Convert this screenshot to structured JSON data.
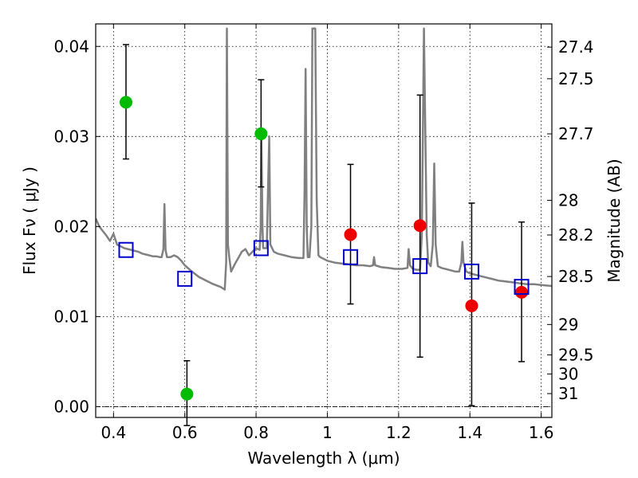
{
  "chart_data": {
    "type": "scatter",
    "xlabel": "Wavelength  λ (μm)",
    "ylabel": "Flux  Fν  ( μJy )",
    "ylabel_right": "Magnitude (AB)",
    "xlim": [
      0.35,
      1.63
    ],
    "ylim": [
      -0.0012,
      0.0425
    ],
    "grid": true,
    "x_ticks": [
      0.4,
      0.6,
      0.8,
      1.0,
      1.2,
      1.4,
      1.6
    ],
    "x_tick_labels": [
      "0.4",
      "0.6",
      "0.8",
      "1",
      "1.2",
      "1.4",
      "1.6"
    ],
    "y_ticks": [
      0.0,
      0.01,
      0.02,
      0.03,
      0.04
    ],
    "y_tick_labels": [
      "0.00",
      "0.01",
      "0.02",
      "0.03",
      "0.04"
    ],
    "right_ticks": [
      {
        "label": "27.4",
        "flux": 0.03992
      },
      {
        "label": "27.5",
        "flux": 0.03641
      },
      {
        "label": "27.7",
        "flux": 0.03029
      },
      {
        "label": "28",
        "flux": 0.02291
      },
      {
        "label": "28.2",
        "flux": 0.01906
      },
      {
        "label": "28.5",
        "flux": 0.01445
      },
      {
        "label": "29",
        "flux": 0.00912
      },
      {
        "label": "29.5",
        "flux": 0.00575
      },
      {
        "label": "30",
        "flux": 0.00363
      },
      {
        "label": "31",
        "flux": 0.00145
      }
    ],
    "zero_line": 0.0,
    "series": [
      {
        "color": "#00bb00",
        "marker": "circle",
        "points": [
          {
            "x": 0.435,
            "y": 0.0338,
            "err_low": 0.0275,
            "err_high": 0.0402
          },
          {
            "x": 0.606,
            "y": 0.0014,
            "err_low": -0.0021,
            "err_high": 0.0051
          },
          {
            "x": 0.814,
            "y": 0.0303,
            "err_low": 0.0244,
            "err_high": 0.0363
          }
        ]
      },
      {
        "color": "#ee0000",
        "marker": "circle",
        "points": [
          {
            "x": 1.065,
            "y": 0.0191,
            "err_low": 0.0114,
            "err_high": 0.0269
          },
          {
            "x": 1.26,
            "y": 0.0201,
            "err_low": 0.0055,
            "err_high": 0.0346
          },
          {
            "x": 1.405,
            "y": 0.0112,
            "err_low": 0.0001,
            "err_high": 0.0226
          },
          {
            "x": 1.545,
            "y": 0.0127,
            "err_low": 0.005,
            "err_high": 0.0205
          }
        ]
      },
      {
        "color": "#0000cc",
        "marker": "open-square",
        "points": [
          {
            "x": 0.435,
            "y": 0.0174
          },
          {
            "x": 0.6,
            "y": 0.0142
          },
          {
            "x": 0.814,
            "y": 0.0176
          },
          {
            "x": 1.065,
            "y": 0.0166
          },
          {
            "x": 1.26,
            "y": 0.0156
          },
          {
            "x": 1.405,
            "y": 0.015
          },
          {
            "x": 1.545,
            "y": 0.0133
          }
        ]
      }
    ],
    "model_spectrum": {
      "color": "#808080",
      "points": [
        [
          0.35,
          0.0209
        ],
        [
          0.36,
          0.02
        ],
        [
          0.37,
          0.0195
        ],
        [
          0.38,
          0.019
        ],
        [
          0.39,
          0.0184
        ],
        [
          0.4,
          0.0192
        ],
        [
          0.41,
          0.018
        ],
        [
          0.42,
          0.0178
        ],
        [
          0.43,
          0.0176
        ],
        [
          0.44,
          0.0175
        ],
        [
          0.45,
          0.0174
        ],
        [
          0.46,
          0.0173
        ],
        [
          0.47,
          0.0172
        ],
        [
          0.48,
          0.017
        ],
        [
          0.49,
          0.0169
        ],
        [
          0.5,
          0.0168
        ],
        [
          0.51,
          0.0167
        ],
        [
          0.52,
          0.0167
        ],
        [
          0.53,
          0.0166
        ],
        [
          0.535,
          0.0166
        ],
        [
          0.54,
          0.0175
        ],
        [
          0.543,
          0.0225
        ],
        [
          0.546,
          0.0174
        ],
        [
          0.55,
          0.0166
        ],
        [
          0.56,
          0.0166
        ],
        [
          0.57,
          0.0168
        ],
        [
          0.58,
          0.0166
        ],
        [
          0.59,
          0.0162
        ],
        [
          0.6,
          0.0157
        ],
        [
          0.62,
          0.015
        ],
        [
          0.64,
          0.0144
        ],
        [
          0.66,
          0.014
        ],
        [
          0.68,
          0.0136
        ],
        [
          0.7,
          0.0133
        ],
        [
          0.712,
          0.013
        ],
        [
          0.716,
          0.016
        ],
        [
          0.718,
          0.042
        ],
        [
          0.721,
          0.018
        ],
        [
          0.725,
          0.0165
        ],
        [
          0.73,
          0.015
        ],
        [
          0.74,
          0.0158
        ],
        [
          0.75,
          0.0165
        ],
        [
          0.76,
          0.0172
        ],
        [
          0.77,
          0.0175
        ],
        [
          0.78,
          0.0168
        ],
        [
          0.79,
          0.0172
        ],
        [
          0.8,
          0.0176
        ],
        [
          0.81,
          0.0174
        ],
        [
          0.813,
          0.02
        ],
        [
          0.815,
          0.03
        ],
        [
          0.818,
          0.02
        ],
        [
          0.82,
          0.0176
        ],
        [
          0.83,
          0.0176
        ],
        [
          0.834,
          0.025
        ],
        [
          0.837,
          0.03
        ],
        [
          0.84,
          0.018
        ],
        [
          0.85,
          0.0172
        ],
        [
          0.86,
          0.017
        ],
        [
          0.88,
          0.0168
        ],
        [
          0.9,
          0.0166
        ],
        [
          0.92,
          0.0165
        ],
        [
          0.933,
          0.0165
        ],
        [
          0.936,
          0.024
        ],
        [
          0.939,
          0.0375
        ],
        [
          0.942,
          0.02
        ],
        [
          0.945,
          0.0166
        ],
        [
          0.95,
          0.0166
        ],
        [
          0.955,
          0.02
        ],
        [
          0.958,
          0.042
        ],
        [
          0.962,
          0.042
        ],
        [
          0.966,
          0.042
        ],
        [
          0.97,
          0.023
        ],
        [
          0.975,
          0.0168
        ],
        [
          0.98,
          0.0166
        ],
        [
          1.0,
          0.0162
        ],
        [
          1.02,
          0.016
        ],
        [
          1.04,
          0.0159
        ],
        [
          1.06,
          0.0158
        ],
        [
          1.08,
          0.0157
        ],
        [
          1.1,
          0.0157
        ],
        [
          1.12,
          0.0156
        ],
        [
          1.128,
          0.0157
        ],
        [
          1.131,
          0.0166
        ],
        [
          1.134,
          0.0157
        ],
        [
          1.15,
          0.0155
        ],
        [
          1.17,
          0.0154
        ],
        [
          1.19,
          0.0153
        ],
        [
          1.21,
          0.0153
        ],
        [
          1.225,
          0.0154
        ],
        [
          1.228,
          0.0175
        ],
        [
          1.232,
          0.0157
        ],
        [
          1.24,
          0.0153
        ],
        [
          1.25,
          0.0152
        ],
        [
          1.26,
          0.0152
        ],
        [
          1.265,
          0.019
        ],
        [
          1.268,
          0.03
        ],
        [
          1.271,
          0.042
        ],
        [
          1.275,
          0.03
        ],
        [
          1.279,
          0.019
        ],
        [
          1.283,
          0.016
        ],
        [
          1.29,
          0.0156
        ],
        [
          1.296,
          0.018
        ],
        [
          1.3,
          0.027
        ],
        [
          1.304,
          0.018
        ],
        [
          1.31,
          0.0156
        ],
        [
          1.32,
          0.0154
        ],
        [
          1.34,
          0.0152
        ],
        [
          1.36,
          0.015
        ],
        [
          1.37,
          0.015
        ],
        [
          1.376,
          0.016
        ],
        [
          1.379,
          0.0183
        ],
        [
          1.382,
          0.016
        ],
        [
          1.39,
          0.015
        ],
        [
          1.4,
          0.0148
        ],
        [
          1.42,
          0.0146
        ],
        [
          1.44,
          0.0144
        ],
        [
          1.46,
          0.0142
        ],
        [
          1.48,
          0.014
        ],
        [
          1.5,
          0.0139
        ],
        [
          1.52,
          0.0138
        ],
        [
          1.54,
          0.0137
        ],
        [
          1.56,
          0.0136
        ],
        [
          1.58,
          0.0136
        ],
        [
          1.6,
          0.0135
        ],
        [
          1.63,
          0.0134
        ]
      ]
    }
  }
}
